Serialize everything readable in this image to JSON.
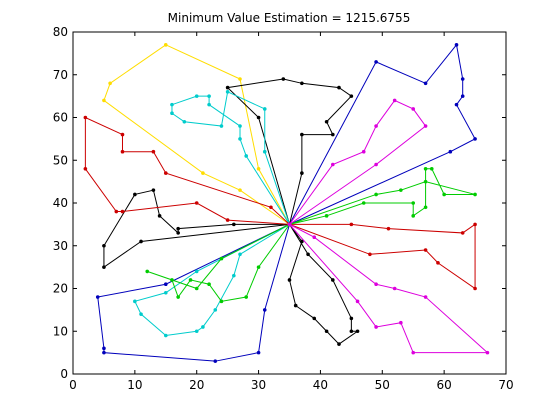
{
  "chart_data": {
    "type": "line",
    "title": "Minimum Value Estimation = 1215.6755",
    "xlabel": "",
    "ylabel": "",
    "xlim": [
      0,
      70
    ],
    "ylim": [
      0,
      80
    ],
    "xticks": [
      0,
      10,
      20,
      30,
      40,
      50,
      60,
      70
    ],
    "yticks": [
      0,
      10,
      20,
      30,
      40,
      50,
      60,
      70,
      80
    ],
    "depot": [
      35,
      35
    ],
    "grid": false,
    "legend": "none",
    "series": [
      {
        "color": "#0000bb",
        "points": [
          [
            35,
            35
          ],
          [
            49,
            73
          ],
          [
            57,
            68
          ],
          [
            62,
            77
          ],
          [
            63,
            69
          ],
          [
            63,
            65
          ],
          [
            62,
            63
          ],
          [
            65,
            55
          ],
          [
            61,
            52
          ],
          [
            35,
            35
          ]
        ]
      },
      {
        "color": "#0000bb",
        "points": [
          [
            35,
            35
          ],
          [
            31,
            15
          ],
          [
            30,
            5
          ],
          [
            23,
            3
          ],
          [
            5,
            5
          ],
          [
            5,
            6
          ],
          [
            4,
            18
          ],
          [
            15,
            21
          ],
          [
            35,
            35
          ]
        ]
      },
      {
        "color": "#ffdd00",
        "points": [
          [
            35,
            35
          ],
          [
            30,
            48
          ],
          [
            27,
            69
          ],
          [
            15,
            77
          ],
          [
            6,
            68
          ],
          [
            5,
            64
          ],
          [
            21,
            47
          ],
          [
            27,
            43
          ],
          [
            35,
            35
          ]
        ]
      },
      {
        "color": "#000000",
        "points": [
          [
            35,
            35
          ],
          [
            30,
            60
          ],
          [
            25,
            67
          ],
          [
            34,
            69
          ],
          [
            37,
            68
          ],
          [
            43,
            67
          ],
          [
            45,
            65
          ],
          [
            41,
            59
          ],
          [
            42,
            56
          ],
          [
            37,
            56
          ],
          [
            37,
            47
          ],
          [
            35,
            35
          ]
        ]
      },
      {
        "color": "#000000",
        "points": [
          [
            35,
            35
          ],
          [
            26,
            35
          ],
          [
            17,
            34
          ],
          [
            17,
            33
          ],
          [
            14,
            37
          ],
          [
            13,
            43
          ],
          [
            10,
            42
          ],
          [
            5,
            30
          ],
          [
            5,
            25
          ],
          [
            11,
            31
          ],
          [
            35,
            35
          ]
        ]
      },
      {
        "color": "#000000",
        "points": [
          [
            35,
            35
          ],
          [
            37,
            31
          ],
          [
            35,
            22
          ],
          [
            36,
            16
          ],
          [
            39,
            13
          ],
          [
            41,
            10
          ],
          [
            43,
            7
          ],
          [
            46,
            10
          ],
          [
            45,
            10
          ],
          [
            45,
            13
          ],
          [
            42,
            22
          ],
          [
            38,
            28
          ],
          [
            35,
            35
          ]
        ]
      },
      {
        "color": "#00cccc",
        "points": [
          [
            35,
            35
          ],
          [
            31,
            52
          ],
          [
            31,
            62
          ],
          [
            25,
            66
          ],
          [
            24,
            58
          ],
          [
            18,
            59
          ],
          [
            16,
            61
          ],
          [
            16,
            63
          ],
          [
            20,
            65
          ],
          [
            22,
            65
          ],
          [
            22,
            63
          ],
          [
            27,
            58
          ],
          [
            27,
            55
          ],
          [
            28,
            51
          ],
          [
            35,
            35
          ]
        ]
      },
      {
        "color": "#00cccc",
        "points": [
          [
            35,
            35
          ],
          [
            27,
            28
          ],
          [
            26,
            23
          ],
          [
            23,
            15
          ],
          [
            21,
            11
          ],
          [
            20,
            10
          ],
          [
            15,
            9
          ],
          [
            11,
            14
          ],
          [
            10,
            17
          ],
          [
            15,
            19
          ],
          [
            20,
            24
          ],
          [
            35,
            35
          ]
        ]
      },
      {
        "color": "#cc0000",
        "points": [
          [
            35,
            35
          ],
          [
            25,
            36
          ],
          [
            20,
            40
          ],
          [
            8,
            38
          ],
          [
            7,
            38
          ],
          [
            2,
            48
          ],
          [
            2,
            60
          ],
          [
            8,
            56
          ],
          [
            8,
            52
          ],
          [
            13,
            52
          ],
          [
            15,
            47
          ],
          [
            32,
            39
          ],
          [
            35,
            35
          ]
        ]
      },
      {
        "color": "#cc0000",
        "points": [
          [
            35,
            35
          ],
          [
            45,
            35
          ],
          [
            51,
            34
          ],
          [
            63,
            33
          ],
          [
            65,
            35
          ],
          [
            65,
            20
          ],
          [
            59,
            26
          ],
          [
            57,
            29
          ],
          [
            48,
            28
          ],
          [
            35,
            35
          ]
        ]
      },
      {
        "color": "#00cc00",
        "points": [
          [
            35,
            35
          ],
          [
            41,
            37
          ],
          [
            47,
            40
          ],
          [
            55,
            40
          ],
          [
            55,
            37
          ],
          [
            57,
            39
          ],
          [
            57,
            48
          ],
          [
            58,
            48
          ],
          [
            60,
            42
          ],
          [
            65,
            42
          ],
          [
            57,
            45
          ],
          [
            53,
            43
          ],
          [
            49,
            42
          ],
          [
            35,
            35
          ]
        ]
      },
      {
        "color": "#00cc00",
        "points": [
          [
            35,
            35
          ],
          [
            30,
            25
          ],
          [
            28,
            18
          ],
          [
            24,
            17
          ],
          [
            22,
            21
          ],
          [
            19,
            22
          ],
          [
            17,
            18
          ],
          [
            16,
            22
          ],
          [
            12,
            24
          ],
          [
            20,
            20
          ],
          [
            24,
            27
          ],
          [
            35,
            35
          ]
        ]
      },
      {
        "color": "#dd00dd",
        "points": [
          [
            35,
            35
          ],
          [
            42,
            49
          ],
          [
            47,
            52
          ],
          [
            49,
            58
          ],
          [
            52,
            64
          ],
          [
            55,
            62
          ],
          [
            57,
            58
          ],
          [
            49,
            49
          ],
          [
            35,
            35
          ]
        ]
      },
      {
        "color": "#dd00dd",
        "points": [
          [
            35,
            35
          ],
          [
            39,
            32
          ],
          [
            49,
            21
          ],
          [
            52,
            20
          ],
          [
            57,
            18
          ],
          [
            67,
            5
          ],
          [
            55,
            5
          ],
          [
            53,
            12
          ],
          [
            49,
            11
          ],
          [
            46,
            17
          ],
          [
            35,
            35
          ]
        ]
      }
    ]
  }
}
